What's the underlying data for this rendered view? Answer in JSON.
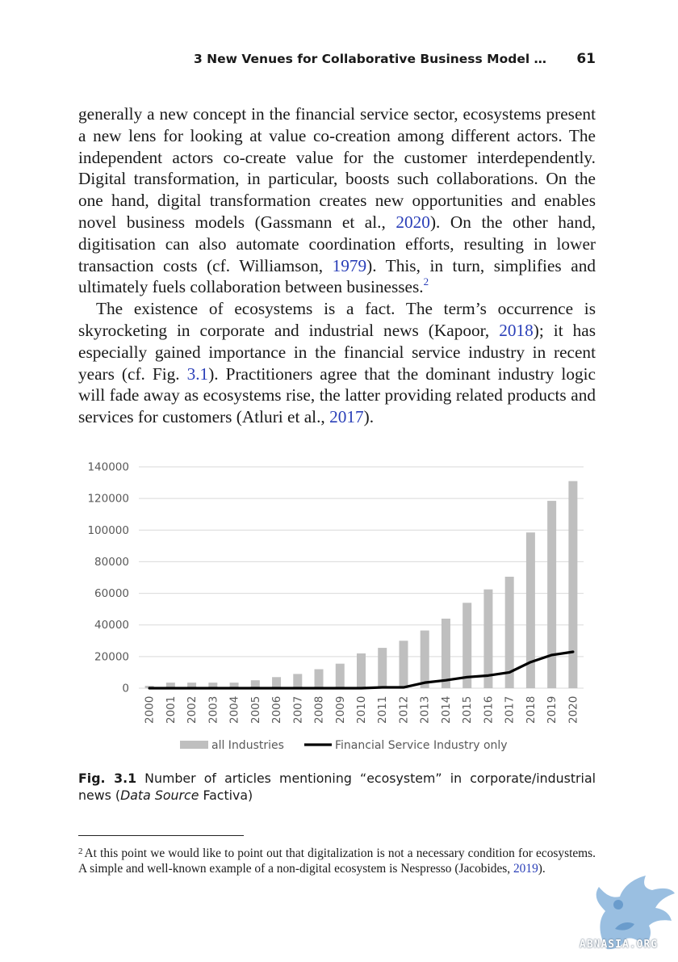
{
  "running_head": {
    "title": "3   New Venues for Collaborative Business Model …",
    "page_number": "61"
  },
  "body": {
    "p1": [
      {
        "t": "generally a new concept in the financial service sector, ecosystems present a new lens for looking at value co-creation among different actors. The independent actors co-create value for the customer interdependently. Digital transformation, in particular, boosts such collaborations. On the one hand, digital transformation creates new opportunities and enables novel business models (Gassmann et al., "
      },
      {
        "t": "2020",
        "cite": true
      },
      {
        "t": "). On the other hand, digitisation can also automate coordination efforts, resulting in lower transaction costs (cf. Williamson, "
      },
      {
        "t": "1979",
        "cite": true
      },
      {
        "t": "). This, in turn, simplifies and ultimately fuels collaboration between businesses."
      },
      {
        "t": "2",
        "sup": true
      }
    ],
    "p2": [
      {
        "t": "The existence of ecosystems is a fact. The term’s occurrence is skyrocketing in corporate and industrial news (Kapoor, "
      },
      {
        "t": "2018",
        "cite": true
      },
      {
        "t": "); it has especially gained importance in the financial service industry in recent years (cf. Fig. "
      },
      {
        "t": "3.1",
        "cite": true
      },
      {
        "t": "). Practitioners agree that the dominant industry logic will fade away as ecosystems rise, the latter providing related products and services for customers (Atluri et al., "
      },
      {
        "t": "2017",
        "cite": true
      },
      {
        "t": ")."
      }
    ]
  },
  "chart_data": {
    "type": "bar",
    "title": "",
    "xlabel": "",
    "ylabel": "",
    "categories": [
      "2000",
      "2001",
      "2002",
      "2003",
      "2004",
      "2005",
      "2006",
      "2007",
      "2008",
      "2009",
      "2010",
      "2011",
      "2012",
      "2013",
      "2014",
      "2015",
      "2016",
      "2017",
      "2018",
      "2019",
      "2020"
    ],
    "series": [
      {
        "name": "all Industries",
        "kind": "bar",
        "color": "#bfbfbf",
        "values": [
          1500,
          3500,
          3500,
          3500,
          3500,
          5000,
          7000,
          9000,
          12000,
          15500,
          22000,
          25500,
          30000,
          36500,
          44000,
          54000,
          62500,
          70500,
          98500,
          118500,
          131000
        ]
      },
      {
        "name": "Financial Service Industry only",
        "kind": "line",
        "color": "#000000",
        "values": [
          0,
          0,
          0,
          0,
          0,
          0,
          0,
          0,
          0,
          0,
          0,
          500,
          500,
          3500,
          5000,
          7000,
          8000,
          10000,
          16500,
          21000,
          23000
        ]
      }
    ],
    "yticks": [
      "0",
      "20000",
      "40000",
      "60000",
      "80000",
      "100000",
      "120000",
      "140000"
    ],
    "ylim": [
      0,
      140000
    ],
    "grid": true,
    "legend": "bottom"
  },
  "caption": {
    "label": "Fig. 3.1",
    "text_before": "Number of articles mentioning “ecosystem” in corporate/industrial news (",
    "text_em": "Data Source",
    "text_after": " Factiva)"
  },
  "footnote": {
    "mark": "2",
    "text": "At this point we would like to point out that digitalization is not a necessary condition for ecosystems. A simple and well-known example of a non-digital ecosystem is Nespresso (Jacobides, ",
    "cite": "2019",
    "end": ")."
  },
  "watermark": {
    "text": "ABNASIA.ORG"
  },
  "colors": {
    "citation": "#2a3fb8",
    "bars": "#bfbfbf",
    "line": "#000000",
    "grid": "#d9d9d9",
    "axis_text": "#595959"
  }
}
